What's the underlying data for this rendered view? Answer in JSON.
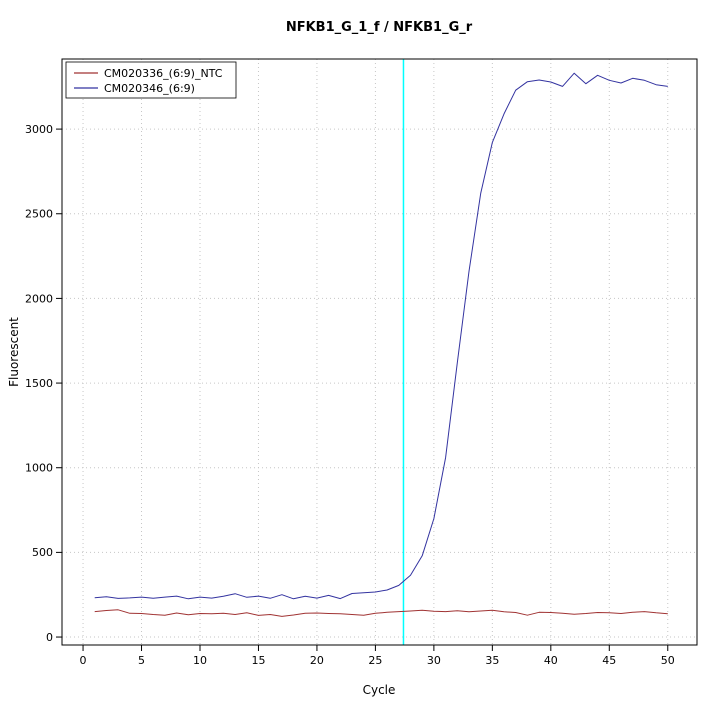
{
  "chart": {
    "title": "NFKB1_G_1_f / NFKB1_G_r",
    "xlabel": "Cycle",
    "ylabel": "Fluorescent"
  },
  "colors": {
    "grid": "#c6c6c6",
    "axis": "#000000",
    "threshold": "#00ffff",
    "ntc_series": "#a03333",
    "sample_series": "#3333a0"
  },
  "chart_data": {
    "type": "line",
    "title": "NFKB1_G_1_f / NFKB1_G_r",
    "xlabel": "Cycle",
    "ylabel": "Fluorescent",
    "xlim": [
      -1.8,
      52.5
    ],
    "ylim": [
      -47,
      3414
    ],
    "xticks": [
      0,
      5,
      10,
      15,
      20,
      25,
      30,
      35,
      40,
      45,
      50
    ],
    "yticks": [
      0,
      500,
      1000,
      1500,
      2000,
      2500,
      3000
    ],
    "grid": "dotted",
    "legend_position": "top-left",
    "threshold_line": {
      "x": 27.4,
      "color": "#00ffff"
    },
    "x": [
      1,
      2,
      3,
      4,
      5,
      6,
      7,
      8,
      9,
      10,
      11,
      12,
      13,
      14,
      15,
      16,
      17,
      18,
      19,
      20,
      21,
      22,
      23,
      24,
      25,
      26,
      27,
      28,
      29,
      30,
      31,
      32,
      33,
      34,
      35,
      36,
      37,
      38,
      39,
      40,
      41,
      42,
      43,
      44,
      45,
      46,
      47,
      48,
      49,
      50
    ],
    "series": [
      {
        "name": "CM020336_(6:9)_NTC",
        "color": "#a03333",
        "values": [
          150,
          157,
          161,
          140,
          139,
          133,
          129,
          142,
          132,
          139,
          137,
          140,
          133,
          143,
          128,
          133,
          122,
          130,
          140,
          142,
          139,
          137,
          133,
          129,
          140,
          146,
          150,
          154,
          158,
          152,
          150,
          155,
          149,
          154,
          158,
          149,
          145,
          129,
          146,
          145,
          140,
          135,
          139,
          145,
          143,
          139,
          146,
          150,
          143,
          138
        ]
      },
      {
        "name": "CM020346_(6:9)",
        "color": "#3333a0",
        "values": [
          232,
          238,
          228,
          231,
          236,
          229,
          236,
          242,
          226,
          236,
          230,
          241,
          256,
          235,
          242,
          229,
          250,
          226,
          241,
          230,
          246,
          227,
          257,
          262,
          266,
          278,
          305,
          365,
          480,
          700,
          1060,
          1620,
          2160,
          2620,
          2920,
          3090,
          3230,
          3280,
          3290,
          3278,
          3252,
          3330,
          3268,
          3318,
          3288,
          3272,
          3300,
          3288,
          3262,
          3252
        ]
      }
    ]
  }
}
